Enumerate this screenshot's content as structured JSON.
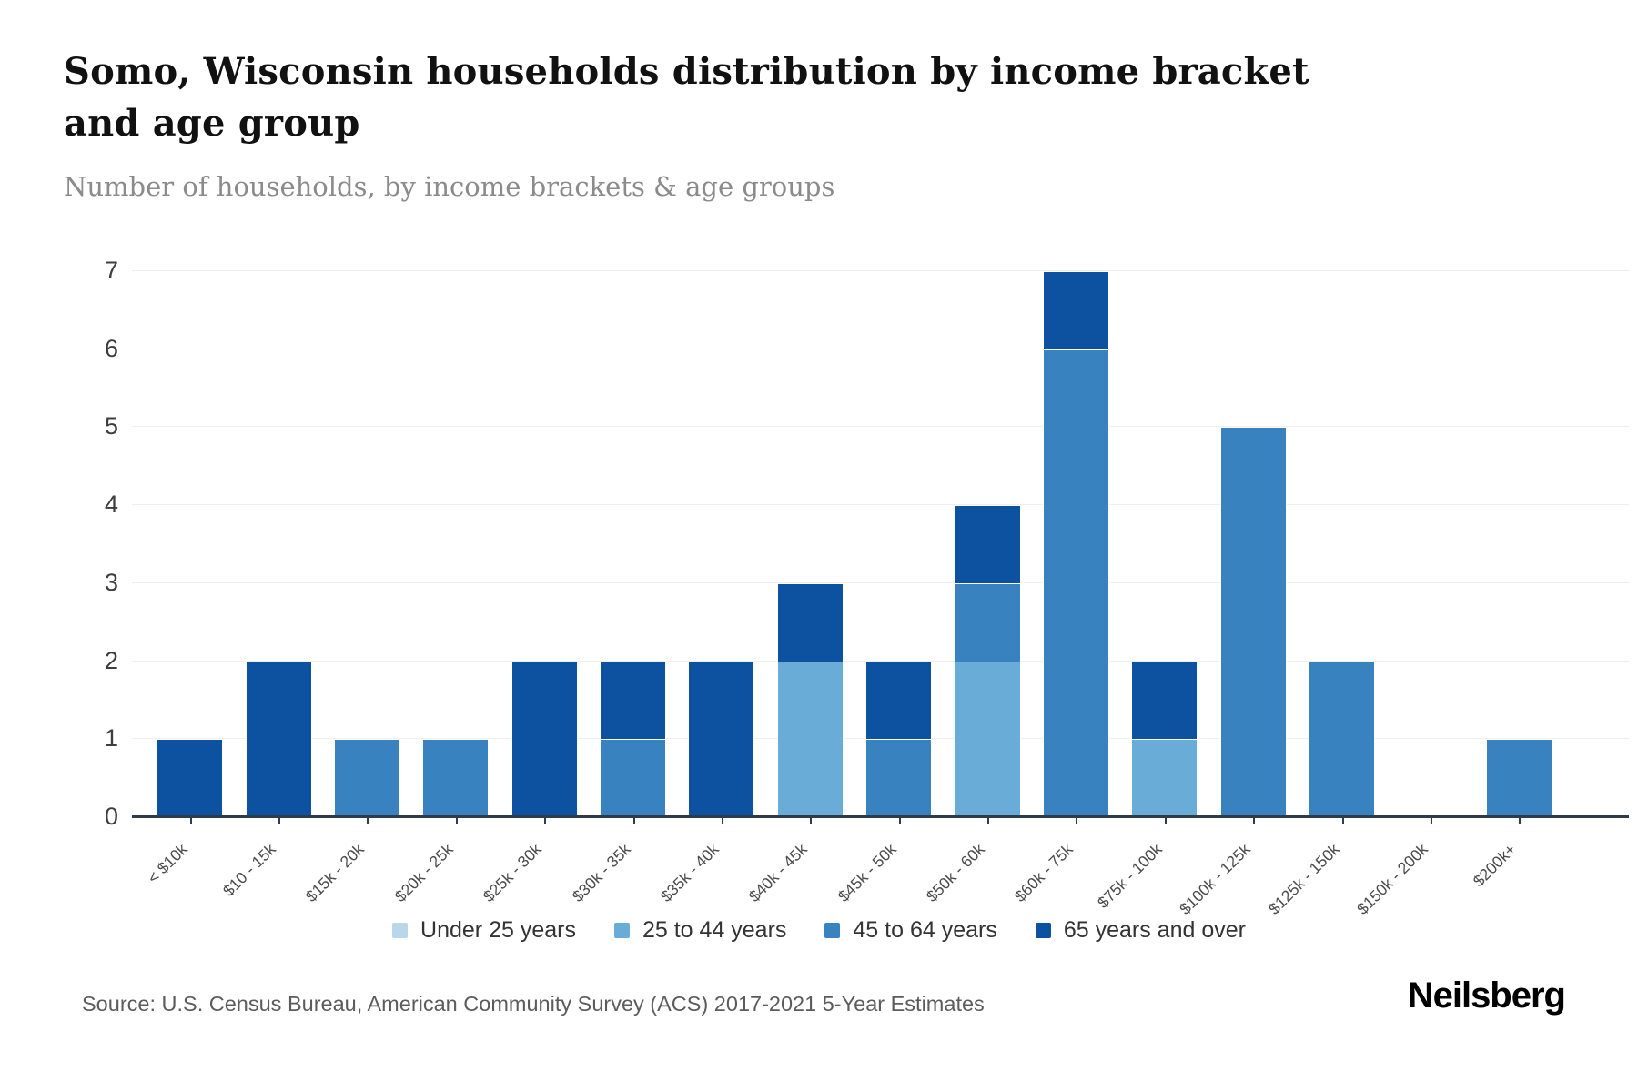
{
  "header": {
    "title": "Somo, Wisconsin households distribution by income bracket and age group",
    "subtitle": "Number of households, by income brackets & age groups"
  },
  "footer": {
    "source": "Source: U.S. Census Bureau, American Community Survey (ACS) 2017-2021 5-Year Estimates",
    "brand": "Neilsberg"
  },
  "chart_data": {
    "type": "bar",
    "stacked": true,
    "title": "Somo, Wisconsin households distribution by income bracket and age group",
    "subtitle": "Number of households, by income brackets & age groups",
    "xlabel": "",
    "ylabel": "Number of households",
    "ylim": [
      0,
      7
    ],
    "yticks": [
      0,
      1,
      2,
      3,
      4,
      5,
      6,
      7
    ],
    "grid": "horizontal",
    "legend_position": "bottom",
    "categories": [
      "< $10k",
      "$10 - 15k",
      "$15k - 20k",
      "$20k - 25k",
      "$25k - 30k",
      "$30k - 35k",
      "$35k - 40k",
      "$40k - 45k",
      "$45k - 50k",
      "$50k - 60k",
      "$60k - 75k",
      "$75k - 100k",
      "$100k - 125k",
      "$125k - 150k",
      "$150k - 200k",
      "$200k+"
    ],
    "series": [
      {
        "name": "Under 25 years",
        "color": "#b9d6ea",
        "values": [
          0,
          0,
          0,
          0,
          0,
          0,
          0,
          0,
          0,
          0,
          0,
          0,
          0,
          0,
          0,
          0
        ]
      },
      {
        "name": "25 to 44 years",
        "color": "#6aacd8",
        "values": [
          0,
          0,
          0,
          0,
          0,
          0,
          0,
          2,
          0,
          2,
          0,
          1,
          0,
          0,
          0,
          0
        ]
      },
      {
        "name": "45 to 64 years",
        "color": "#3883bf",
        "values": [
          0,
          0,
          1,
          1,
          0,
          1,
          0,
          0,
          1,
          1,
          6,
          0,
          5,
          2,
          0,
          1
        ]
      },
      {
        "name": "65 years and over",
        "color": "#0d52a0",
        "values": [
          1,
          2,
          0,
          0,
          2,
          1,
          2,
          1,
          1,
          1,
          1,
          1,
          0,
          0,
          0,
          0
        ]
      }
    ],
    "totals": [
      1,
      2,
      1,
      1,
      2,
      2,
      2,
      3,
      2,
      4,
      7,
      2,
      5,
      2,
      0,
      1
    ]
  }
}
